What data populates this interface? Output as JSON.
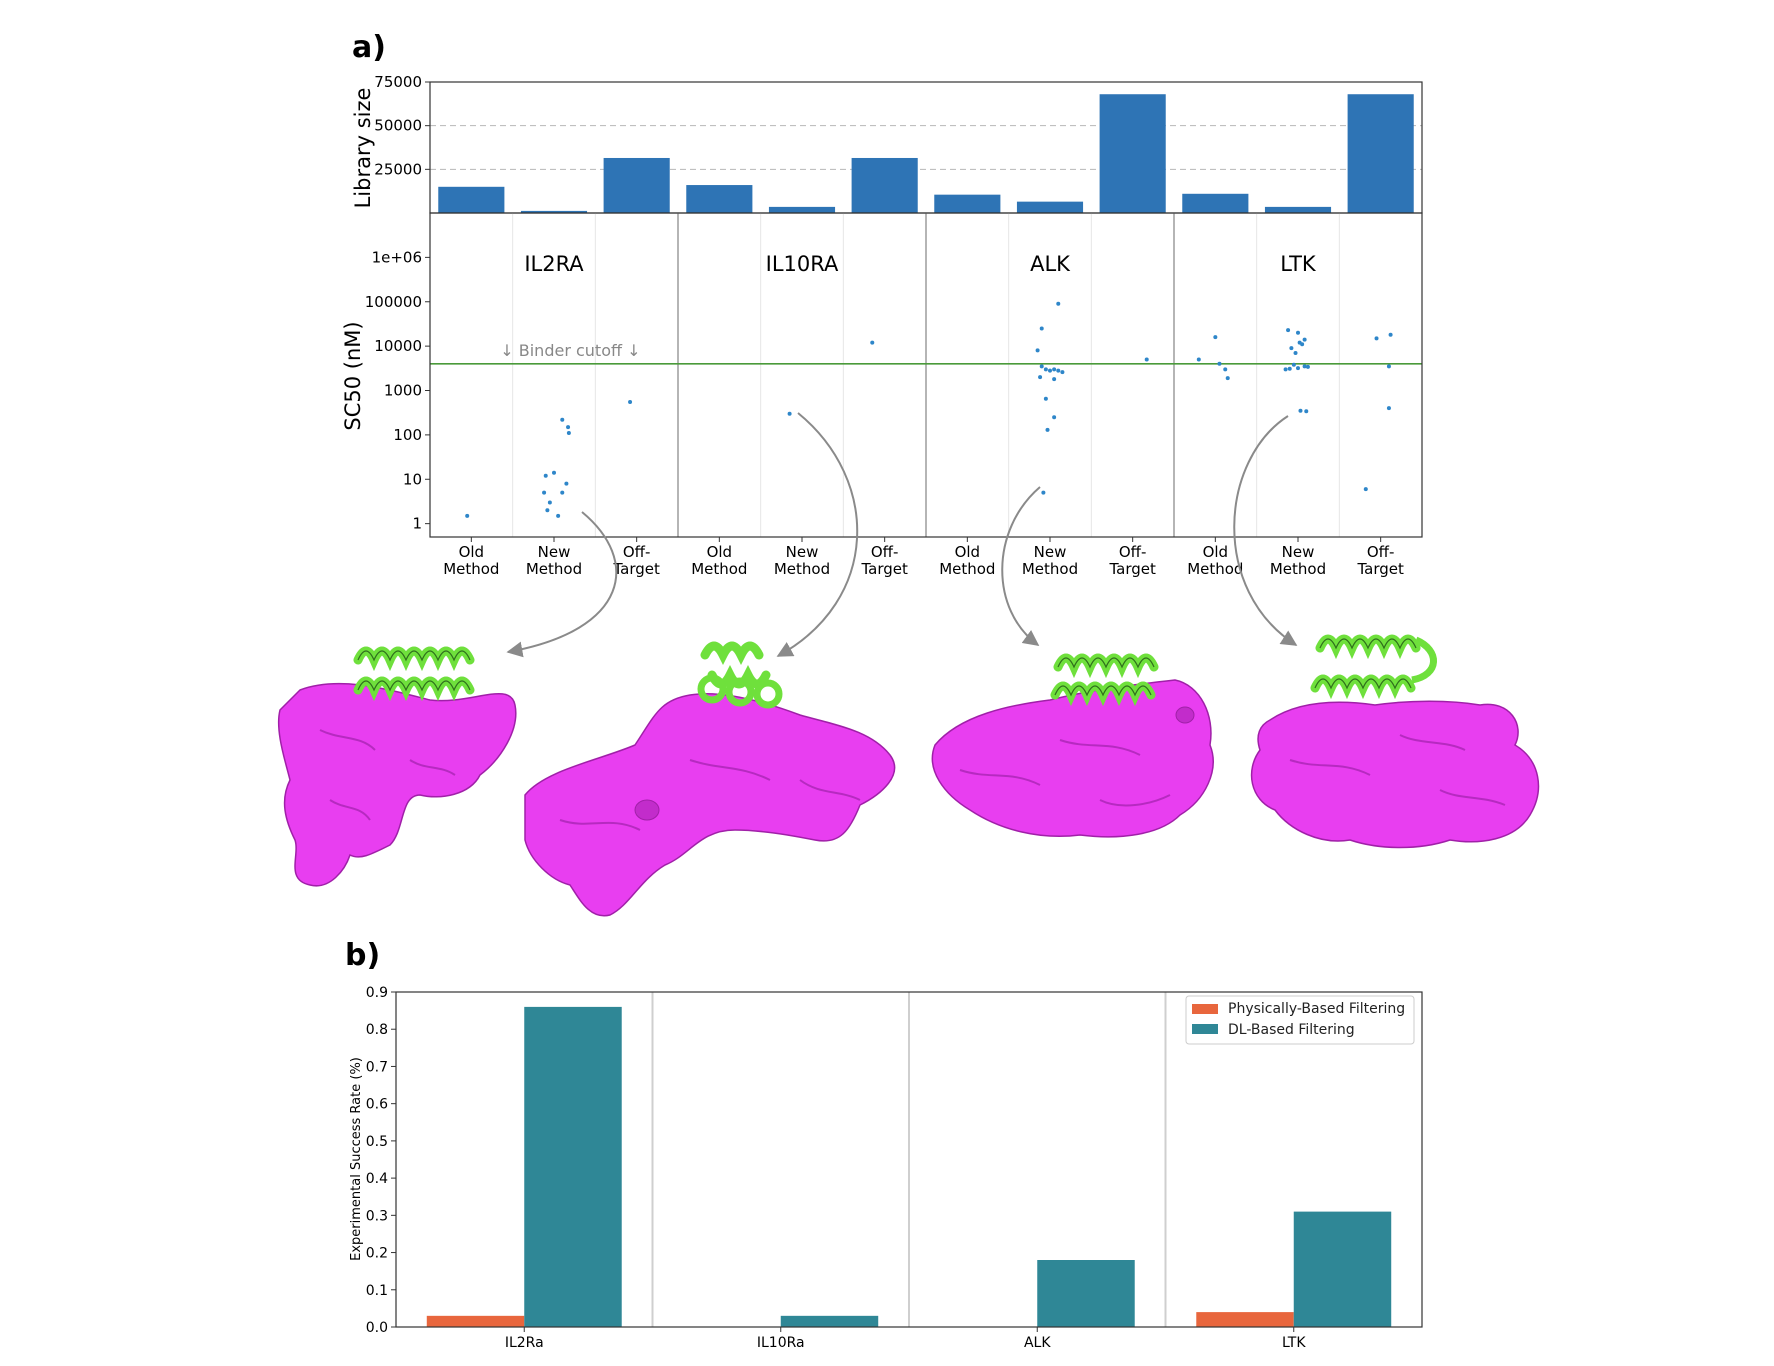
{
  "panel_labels": [
    "a)",
    "b)"
  ],
  "colors": {
    "bar": "#2e74b5",
    "scatter": "#2e86c9",
    "cutoff": "#4a9a3a",
    "protein": "#e83ef0",
    "helix": "#6fe03c",
    "physical": "#e8663d",
    "dl": "#2f8796",
    "arrow": "#8a8a8a"
  },
  "chart_data": [
    {
      "id": "library",
      "type": "bar",
      "ylabel": "Library size",
      "yticks": [
        25000,
        50000,
        75000
      ],
      "ytick_labels": [
        "25000",
        "50000",
        "75000"
      ],
      "ylim": [
        0,
        75000
      ],
      "grid": "horizontal-dashed",
      "values": [
        15000,
        1200,
        31500,
        16000,
        3500,
        31500,
        10500,
        6500,
        68000,
        11000,
        3500,
        68000
      ]
    },
    {
      "id": "sc50",
      "type": "scatter",
      "ylabel": "SC50 (nM)",
      "yscale": "log",
      "yticks": [
        1,
        10,
        100,
        1000,
        10000,
        100000,
        1000000
      ],
      "ytick_labels": [
        "1",
        "10",
        "100",
        "1000",
        "10000",
        "100000",
        "1e+06"
      ],
      "ylim": [
        0.5,
        10000000
      ],
      "cutoff": {
        "value": 4000,
        "label": "↓ Binder cutoff ↓"
      },
      "targets": [
        "IL2RA",
        "IL10RA",
        "ALK",
        "LTK"
      ],
      "categories": [
        "Old\nMethod",
        "New\nMethod",
        "Off-\nTarget",
        "Old\nMethod",
        "New\nMethod",
        "Off-\nTarget",
        "Old\nMethod",
        "New\nMethod",
        "Off-\nTarget",
        "Old\nMethod",
        "New\nMethod",
        "Off-\nTarget"
      ],
      "points": [
        [
          0,
          -0.05,
          1.5
        ],
        [
          1,
          -0.1,
          12
        ],
        [
          1,
          0.0,
          14
        ],
        [
          1,
          0.15,
          8
        ],
        [
          1,
          0.1,
          5
        ],
        [
          1,
          -0.12,
          5
        ],
        [
          1,
          -0.05,
          3
        ],
        [
          1,
          -0.08,
          2
        ],
        [
          1,
          0.05,
          1.5
        ],
        [
          1,
          0.1,
          220
        ],
        [
          1,
          0.17,
          150
        ],
        [
          1,
          0.18,
          110
        ],
        [
          2,
          -0.08,
          550
        ],
        [
          4,
          -0.15,
          300
        ],
        [
          5,
          -0.15,
          12000
        ],
        [
          7,
          -0.1,
          25000
        ],
        [
          7,
          0.1,
          90000
        ],
        [
          7,
          -0.15,
          8000
        ],
        [
          7,
          -0.1,
          3500
        ],
        [
          7,
          -0.05,
          3000
        ],
        [
          7,
          0.0,
          2800
        ],
        [
          7,
          0.05,
          3000
        ],
        [
          7,
          0.1,
          2800
        ],
        [
          7,
          0.15,
          2600
        ],
        [
          7,
          -0.12,
          2000
        ],
        [
          7,
          0.05,
          1800
        ],
        [
          7,
          -0.05,
          650
        ],
        [
          7,
          0.05,
          250
        ],
        [
          7,
          -0.03,
          130
        ],
        [
          7,
          -0.08,
          5
        ],
        [
          8,
          0.17,
          5000
        ],
        [
          9,
          -0.2,
          5000
        ],
        [
          9,
          0.0,
          16000
        ],
        [
          9,
          0.05,
          4000
        ],
        [
          9,
          0.12,
          3000
        ],
        [
          9,
          0.15,
          1900
        ],
        [
          10,
          -0.12,
          23000
        ],
        [
          10,
          0.0,
          20000
        ],
        [
          10,
          -0.08,
          9000
        ],
        [
          10,
          0.02,
          12000
        ],
        [
          10,
          0.08,
          14000
        ],
        [
          10,
          -0.03,
          7000
        ],
        [
          10,
          0.05,
          11000
        ],
        [
          10,
          -0.15,
          3000
        ],
        [
          10,
          -0.1,
          3100
        ],
        [
          10,
          0.0,
          3200
        ],
        [
          10,
          0.08,
          3500
        ],
        [
          10,
          0.12,
          3400
        ],
        [
          10,
          -0.05,
          3800
        ],
        [
          10,
          0.03,
          350
        ],
        [
          10,
          0.1,
          340
        ],
        [
          11,
          -0.05,
          15000
        ],
        [
          11,
          0.12,
          18000
        ],
        [
          11,
          0.1,
          3500
        ],
        [
          11,
          0.1,
          400
        ],
        [
          11,
          -0.18,
          6
        ]
      ]
    },
    {
      "id": "success",
      "type": "bar",
      "ylabel": "Experimental Success Rate (%)",
      "categories": [
        "IL2Ra",
        "IL10Ra",
        "ALK",
        "LTK"
      ],
      "ylim": [
        0,
        0.9
      ],
      "yticks": [
        0.0,
        0.1,
        0.2,
        0.3,
        0.4,
        0.5,
        0.6,
        0.7,
        0.8,
        0.9
      ],
      "ytick_labels": [
        "0.0",
        "0.1",
        "0.2",
        "0.3",
        "0.4",
        "0.5",
        "0.6",
        "0.7",
        "0.8",
        "0.9"
      ],
      "legend_position": "top-right",
      "series": [
        {
          "name": "Physically-Based Filtering",
          "values": [
            0.03,
            0.0,
            0.0,
            0.04
          ]
        },
        {
          "name": "DL-Based Filtering",
          "values": [
            0.86,
            0.03,
            0.18,
            0.31
          ]
        }
      ]
    }
  ]
}
